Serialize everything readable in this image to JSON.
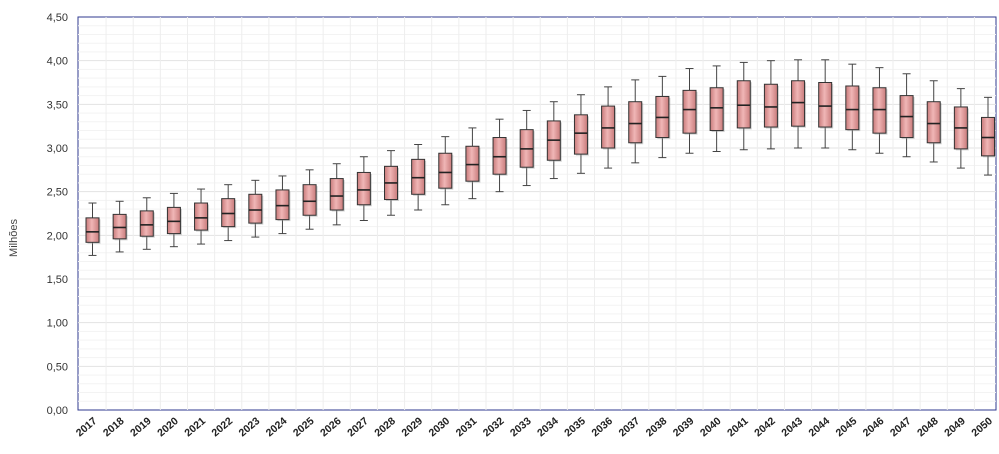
{
  "chart_data": {
    "type": "box",
    "ylabel": "Milhões",
    "ylim": [
      0,
      4.5
    ],
    "y_ticks": [
      "0,00",
      "0,50",
      "1,00",
      "1,50",
      "2,00",
      "2,50",
      "3,00",
      "3,50",
      "4,00",
      "4,50"
    ],
    "y_tick_values": [
      0,
      0.5,
      1,
      1.5,
      2,
      2.5,
      3,
      3.5,
      4,
      4.5
    ],
    "grid": true,
    "box_color": "#e8a3a3",
    "categories": [
      "2017",
      "2018",
      "2019",
      "2020",
      "2021",
      "2022",
      "2023",
      "2024",
      "2025",
      "2026",
      "2027",
      "2028",
      "2029",
      "2030",
      "2031",
      "2032",
      "2033",
      "2034",
      "2035",
      "2036",
      "2037",
      "2038",
      "2039",
      "2040",
      "2041",
      "2042",
      "2043",
      "2044",
      "2045",
      "2046",
      "2047",
      "2048",
      "2049",
      "2050"
    ],
    "min": [
      1.77,
      1.81,
      1.84,
      1.87,
      1.9,
      1.94,
      1.98,
      2.02,
      2.07,
      2.12,
      2.17,
      2.23,
      2.29,
      2.35,
      2.42,
      2.5,
      2.57,
      2.65,
      2.71,
      2.77,
      2.83,
      2.89,
      2.94,
      2.96,
      2.98,
      2.99,
      3.0,
      3.0,
      2.98,
      2.94,
      2.9,
      2.84,
      2.77,
      2.69
    ],
    "q1": [
      1.92,
      1.96,
      1.99,
      2.02,
      2.06,
      2.1,
      2.14,
      2.18,
      2.23,
      2.29,
      2.35,
      2.41,
      2.47,
      2.54,
      2.62,
      2.7,
      2.78,
      2.86,
      2.93,
      3.0,
      3.06,
      3.12,
      3.17,
      3.2,
      3.23,
      3.24,
      3.25,
      3.24,
      3.21,
      3.17,
      3.12,
      3.06,
      2.99,
      2.91
    ],
    "median": [
      2.04,
      2.09,
      2.12,
      2.16,
      2.2,
      2.25,
      2.29,
      2.34,
      2.39,
      2.45,
      2.52,
      2.6,
      2.66,
      2.72,
      2.81,
      2.9,
      2.99,
      3.09,
      3.17,
      3.23,
      3.28,
      3.35,
      3.44,
      3.46,
      3.49,
      3.47,
      3.52,
      3.48,
      3.44,
      3.44,
      3.36,
      3.28,
      3.23,
      3.12
    ],
    "q3": [
      2.2,
      2.24,
      2.28,
      2.32,
      2.37,
      2.42,
      2.47,
      2.52,
      2.58,
      2.65,
      2.72,
      2.79,
      2.87,
      2.94,
      3.02,
      3.12,
      3.21,
      3.31,
      3.38,
      3.48,
      3.53,
      3.59,
      3.66,
      3.69,
      3.77,
      3.73,
      3.77,
      3.75,
      3.71,
      3.69,
      3.6,
      3.53,
      3.47,
      3.35
    ],
    "max": [
      2.37,
      2.39,
      2.43,
      2.48,
      2.53,
      2.58,
      2.63,
      2.68,
      2.75,
      2.82,
      2.9,
      2.97,
      3.04,
      3.13,
      3.23,
      3.33,
      3.43,
      3.53,
      3.61,
      3.7,
      3.78,
      3.82,
      3.91,
      3.94,
      3.98,
      4.0,
      4.01,
      4.01,
      3.96,
      3.92,
      3.85,
      3.77,
      3.68,
      3.58
    ]
  }
}
